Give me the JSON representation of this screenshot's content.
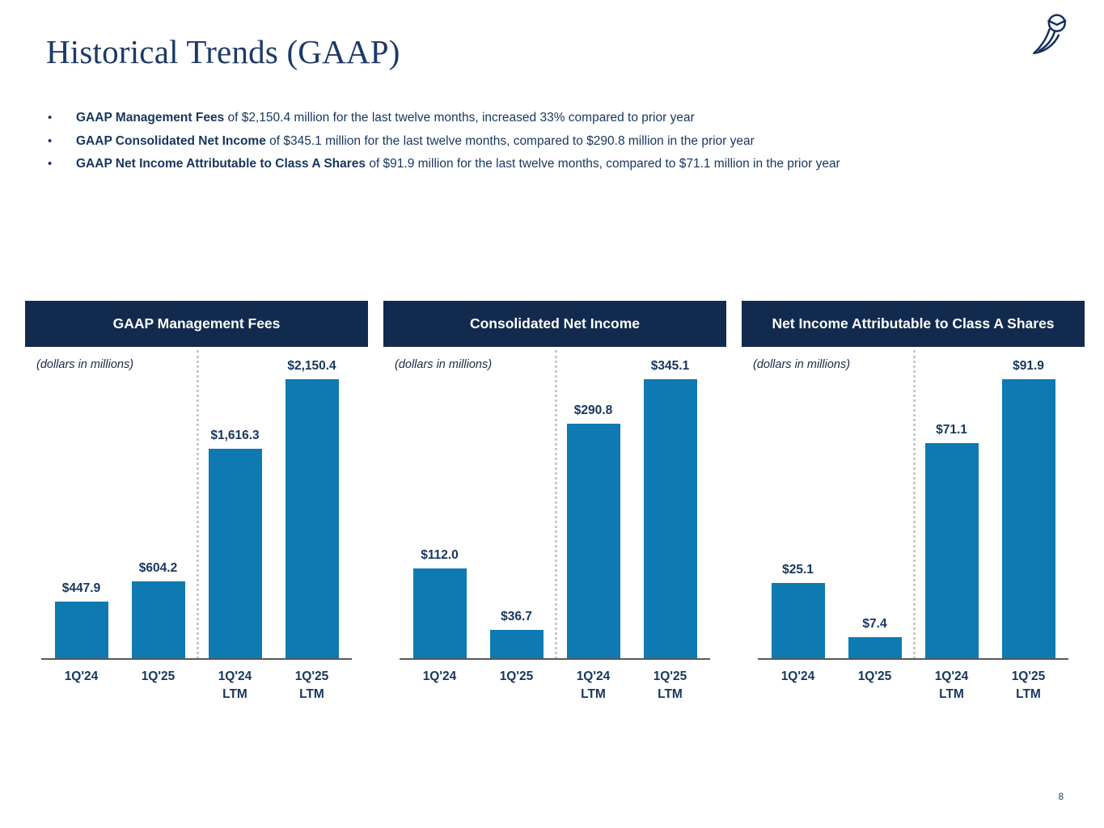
{
  "slide": {
    "title": "Historical Trends (GAAP)",
    "page_number": "8",
    "logo_icon": "owl-logo",
    "bullet_glyph": "•",
    "bullets": [
      {
        "bold": "GAAP Management Fees",
        "rest": " of $2,150.4 million for the last twelve months, increased 33% compared to prior year"
      },
      {
        "bold": "GAAP Consolidated Net Income",
        "rest": " of $345.1 million for the last twelve months, compared to $290.8 million in the prior year"
      },
      {
        "bold": "GAAP Net Income Attributable to Class A Shares",
        "rest": " of $91.9 million for the last twelve months, compared to $71.1 million in the prior year"
      }
    ]
  },
  "colors": {
    "header_bg": "#122a4e",
    "bar_blue": "#0e7ab1",
    "text_navy": "#17365e",
    "axis_gray": "#595959",
    "divider_gray": "#c9c9c9"
  },
  "chart_data": [
    {
      "type": "bar",
      "title": "GAAP Management Fees",
      "subtitle": "(dollars in millions)",
      "categories": [
        "1Q'24",
        "1Q'25",
        "1Q'24\nLTM",
        "1Q'25\nLTM"
      ],
      "values": [
        447.9,
        604.2,
        1616.3,
        2150.4
      ],
      "value_labels": [
        "$447.9",
        "$604.2",
        "$1,616.3",
        "$2,150.4"
      ],
      "ylim": [
        0,
        2150.4
      ],
      "grid": false,
      "legend": "none",
      "separator": "dotted vertical line between quarterly bars and LTM bars"
    },
    {
      "type": "bar",
      "title": "Consolidated Net Income",
      "subtitle": "(dollars in millions)",
      "categories": [
        "1Q'24",
        "1Q'25",
        "1Q'24\nLTM",
        "1Q'25\nLTM"
      ],
      "values": [
        112.0,
        36.7,
        290.8,
        345.1
      ],
      "value_labels": [
        "$112.0",
        "$36.7",
        "$290.8",
        "$345.1"
      ],
      "ylim": [
        0,
        345.1
      ],
      "grid": false,
      "legend": "none",
      "separator": "dotted vertical line between quarterly bars and LTM bars"
    },
    {
      "type": "bar",
      "title": "Net Income Attributable to Class A Shares",
      "subtitle": "(dollars in millions)",
      "categories": [
        "1Q'24",
        "1Q'25",
        "1Q'24\nLTM",
        "1Q'25\nLTM"
      ],
      "values": [
        25.1,
        7.4,
        71.1,
        91.9
      ],
      "value_labels": [
        "$25.1",
        "$7.4",
        "$71.1",
        "$91.9"
      ],
      "ylim": [
        0,
        91.9
      ],
      "grid": false,
      "legend": "none",
      "separator": "dotted vertical line between quarterly bars and LTM bars"
    }
  ]
}
